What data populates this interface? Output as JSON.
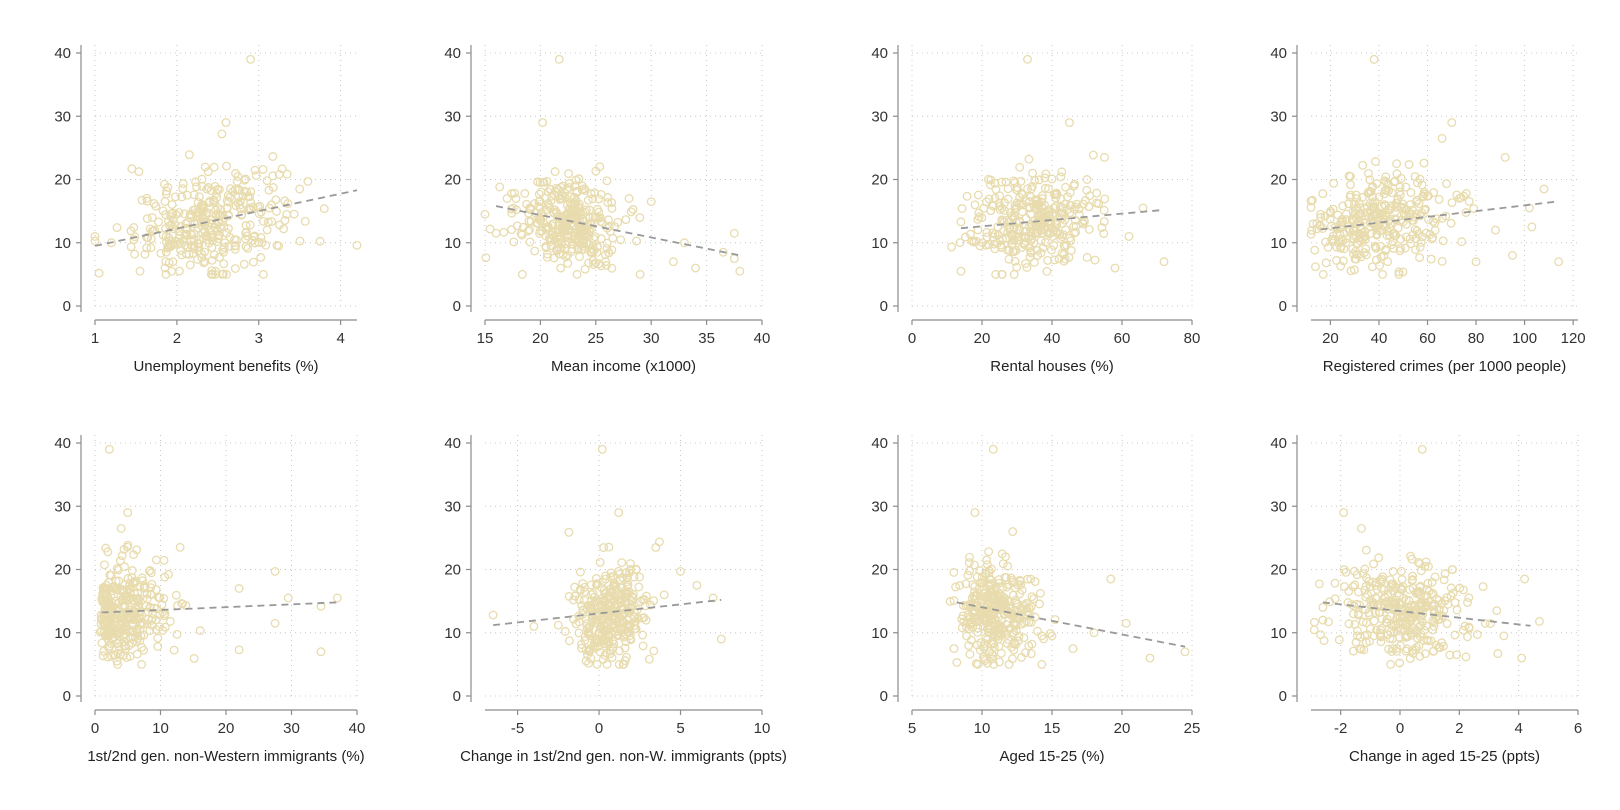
{
  "figure": {
    "marker_color": "#e8dcae",
    "fit_color": "#999999",
    "layout": "2x4 grid of scatter plots with dashed fitted lines",
    "shared_y": {
      "ylim": [
        0,
        40
      ],
      "yticks": [
        0,
        10,
        20,
        30,
        40
      ]
    }
  },
  "chart_data": [
    {
      "type": "scatter",
      "xlabel": "Unemployment benefits (%)",
      "xlim": [
        1,
        4.2
      ],
      "xticks": [
        1,
        2,
        3,
        4
      ],
      "ylim": [
        0,
        40
      ],
      "yticks": [
        0,
        10,
        20,
        30,
        40
      ],
      "grid": true,
      "fit": [
        [
          1,
          9.5
        ],
        [
          4.2,
          18.3
        ]
      ],
      "cluster": {
        "mx": 2.4,
        "sx": 0.45,
        "slope": 2.8,
        "resid": 3.8
      },
      "points": [
        [
          2.9,
          39
        ],
        [
          1.0,
          11
        ],
        [
          1.05,
          5.2
        ],
        [
          1.45,
          21.7
        ],
        [
          1.55,
          5.5
        ],
        [
          4.2,
          9.6
        ],
        [
          3.8,
          15.4
        ],
        [
          3.5,
          18.5
        ],
        [
          2.6,
          29
        ],
        [
          3.25,
          20.8
        ],
        [
          1.2,
          10
        ],
        [
          1.7,
          14
        ],
        [
          3.6,
          19.7
        ],
        [
          2.55,
          27.2
        ]
      ]
    },
    {
      "type": "scatter",
      "xlabel": "Mean income (x1000)",
      "xlim": [
        15,
        40
      ],
      "xticks": [
        15,
        20,
        25,
        30,
        35,
        40
      ],
      "ylim": [
        0,
        40
      ],
      "yticks": [
        0,
        10,
        20,
        30,
        40
      ],
      "grid": true,
      "fit": [
        [
          16,
          15.8
        ],
        [
          38,
          8.0
        ]
      ],
      "cluster": {
        "mx": 22.5,
        "sx": 2.3,
        "slope": -0.35,
        "resid": 3.6
      },
      "points": [
        [
          21.7,
          39
        ],
        [
          20.2,
          29
        ],
        [
          38,
          5.5
        ],
        [
          37.5,
          7.5
        ],
        [
          37.5,
          11.5
        ],
        [
          36.5,
          8.5
        ],
        [
          34,
          6
        ],
        [
          32,
          7
        ],
        [
          30,
          16.5
        ],
        [
          29,
          5
        ],
        [
          16,
          11.5
        ],
        [
          17,
          17
        ],
        [
          28,
          17
        ],
        [
          33,
          10
        ]
      ]
    },
    {
      "type": "scatter",
      "xlabel": "Rental houses (%)",
      "xlim": [
        0,
        80
      ],
      "xticks": [
        0,
        20,
        40,
        60,
        80
      ],
      "ylim": [
        0,
        40
      ],
      "yticks": [
        0,
        10,
        20,
        30,
        40
      ],
      "grid": true,
      "fit": [
        [
          14,
          12.3
        ],
        [
          72,
          15.2
        ]
      ],
      "cluster": {
        "mx": 35,
        "sx": 9,
        "slope": 0.05,
        "resid": 3.8
      },
      "points": [
        [
          33,
          39
        ],
        [
          14,
          5.5
        ],
        [
          72,
          7
        ],
        [
          66,
          15.5
        ],
        [
          58,
          6
        ],
        [
          55,
          23.5
        ],
        [
          45,
          29
        ],
        [
          62,
          11
        ],
        [
          50,
          20
        ],
        [
          18,
          16
        ]
      ]
    },
    {
      "type": "scatter",
      "xlabel": "Registered crimes (per 1000 people)",
      "xlim": [
        12,
        122
      ],
      "xticks": [
        20,
        40,
        60,
        80,
        100,
        120
      ],
      "ylim": [
        0,
        40
      ],
      "yticks": [
        0,
        10,
        20,
        30,
        40
      ],
      "grid": true,
      "fit": [
        [
          16,
          12.1
        ],
        [
          113,
          16.5
        ]
      ],
      "cluster": {
        "mx": 40,
        "sx": 14,
        "slope": 0.045,
        "resid": 3.8
      },
      "points": [
        [
          38,
          39
        ],
        [
          114,
          7
        ],
        [
          108,
          18.5
        ],
        [
          102,
          15.5
        ],
        [
          103,
          12.5
        ],
        [
          92,
          23.5
        ],
        [
          80,
          7
        ],
        [
          95,
          8
        ],
        [
          70,
          29
        ],
        [
          16,
          14
        ],
        [
          66,
          26.5
        ],
        [
          88,
          12
        ]
      ]
    },
    {
      "type": "scatter",
      "xlabel": "1st/2nd gen. non-Western immigrants (%)",
      "xlim": [
        0,
        40
      ],
      "xticks": [
        0,
        10,
        20,
        30,
        40
      ],
      "ylim": [
        0,
        40
      ],
      "yticks": [
        0,
        10,
        20,
        30,
        40
      ],
      "grid": true,
      "fit": [
        [
          1,
          13.2
        ],
        [
          37,
          14.8
        ]
      ],
      "cluster": {
        "mx": 4.5,
        "sx": 3.6,
        "slope": 0.05,
        "resid": 3.7,
        "xmin": 0.8
      },
      "points": [
        [
          2.2,
          39
        ],
        [
          37,
          15.5
        ],
        [
          34.5,
          7
        ],
        [
          34.5,
          14.2
        ],
        [
          29.5,
          15.5
        ],
        [
          27.5,
          19.7
        ],
        [
          27.5,
          11.5
        ],
        [
          22,
          7.3
        ],
        [
          22,
          17
        ],
        [
          5,
          29
        ],
        [
          4,
          26.5
        ],
        [
          13,
          23.5
        ]
      ]
    },
    {
      "type": "scatter",
      "xlabel": "Change in 1st/2nd gen. non-W. immigrants (ppts)",
      "xlim": [
        -7,
        10
      ],
      "xticks": [
        -5,
        0,
        5,
        10
      ],
      "ylim": [
        0,
        40
      ],
      "yticks": [
        0,
        10,
        20,
        30,
        40
      ],
      "grid": true,
      "fit": [
        [
          -6.5,
          11.2
        ],
        [
          7.5,
          15.2
        ]
      ],
      "cluster": {
        "mx": 0.6,
        "sx": 1.1,
        "slope": 0.3,
        "resid": 3.7
      },
      "points": [
        [
          0.2,
          39
        ],
        [
          -6.5,
          12.8
        ],
        [
          7.5,
          9
        ],
        [
          7,
          15.5
        ],
        [
          6,
          17.5
        ],
        [
          5,
          19.7
        ],
        [
          1.2,
          29
        ],
        [
          -4,
          11
        ],
        [
          -2.5,
          11.2
        ],
        [
          4,
          16
        ]
      ]
    },
    {
      "type": "scatter",
      "xlabel": "Aged 15-25 (%)",
      "xlim": [
        5,
        25
      ],
      "xticks": [
        5,
        10,
        15,
        20,
        25
      ],
      "ylim": [
        0,
        40
      ],
      "yticks": [
        0,
        10,
        20,
        30,
        40
      ],
      "grid": true,
      "fit": [
        [
          8.2,
          14.8
        ],
        [
          24.5,
          7.8
        ]
      ],
      "cluster": {
        "mx": 11,
        "sx": 1.3,
        "slope": -0.4,
        "resid": 3.6
      },
      "points": [
        [
          10.8,
          39
        ],
        [
          24.5,
          7
        ],
        [
          22,
          6
        ],
        [
          20.3,
          11.5
        ],
        [
          19.2,
          18.5
        ],
        [
          18,
          10
        ],
        [
          9.5,
          29
        ],
        [
          8,
          7.5
        ],
        [
          8.2,
          5.3
        ],
        [
          15,
          9.5
        ],
        [
          16.5,
          7.5
        ]
      ]
    },
    {
      "type": "scatter",
      "xlabel": "Change in aged 15-25 (ppts)",
      "xlim": [
        -3,
        6
      ],
      "xticks": [
        -2,
        0,
        2,
        4,
        6
      ],
      "ylim": [
        0,
        40
      ],
      "yticks": [
        0,
        10,
        20,
        30,
        40
      ],
      "grid": true,
      "fit": [
        [
          -2.6,
          14.8
        ],
        [
          4.4,
          11.1
        ]
      ],
      "cluster": {
        "mx": 0.1,
        "sx": 1.1,
        "slope": -0.5,
        "resid": 3.7
      },
      "points": [
        [
          0.75,
          39
        ],
        [
          -1.9,
          29
        ],
        [
          4.2,
          18.5
        ],
        [
          4.7,
          11.8
        ],
        [
          4.1,
          6
        ],
        [
          3.3,
          6.7
        ],
        [
          3.5,
          9.5
        ],
        [
          -2.6,
          14
        ],
        [
          -2.6,
          12
        ],
        [
          2.8,
          17.3
        ],
        [
          -1.3,
          26.5
        ]
      ]
    }
  ]
}
